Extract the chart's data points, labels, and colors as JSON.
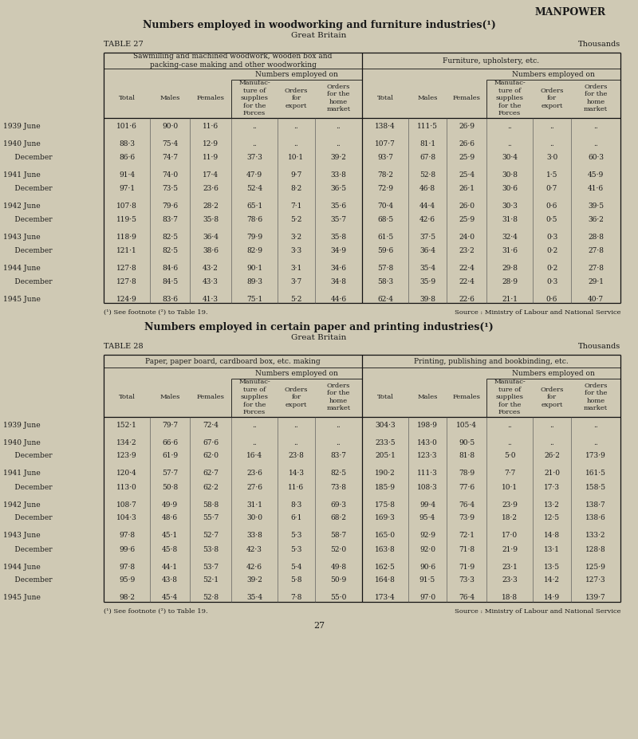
{
  "bg_color": "#cfc9b4",
  "text_color": "#1a1a1a",
  "page_title": "MANPOWER",
  "table27_title": "Numbers employed in woodworking and furniture industries(¹)",
  "table27_subtitle": "Great Britain",
  "table27_label": "TABLE 27",
  "table27_unit": "Thousands",
  "table27_col1_header": "Sawmilling and machined woodwork, wooden box and\npacking-case making and other woodworking",
  "table27_col2_header": "Furniture, upholstery, etc.",
  "table27_footnote": "(¹) See footnote (²) to Table 19.",
  "table27_source": "Source : Ministry of Labour and National Service",
  "table27_rows": [
    [
      "1939 June           ",
      "101·6",
      "90·0",
      "11·6",
      "..",
      "..",
      "..",
      "138·4",
      "111·5",
      "26·9",
      "..",
      "..",
      ".."
    ],
    [
      "1940 June           ",
      "88·3",
      "75·4",
      "12·9",
      "..",
      "..",
      "..",
      "107·7",
      "81·1",
      "26·6",
      "..",
      "..",
      ".."
    ],
    [
      "     December     ",
      "86·6",
      "74·7",
      "11·9",
      "37·3",
      "10·1",
      "39·2",
      "93·7",
      "67·8",
      "25·9",
      "30·4",
      "3·0",
      "60·3"
    ],
    [
      "1941 June          ",
      "91·4",
      "74·0",
      "17·4",
      "47·9",
      "9·7",
      "33·8",
      "78·2",
      "52·8",
      "25·4",
      "30·8",
      "1·5",
      "45·9"
    ],
    [
      "     December     ",
      "97·1",
      "73·5",
      "23·6",
      "52·4",
      "8·2",
      "36·5",
      "72·9",
      "46·8",
      "26·1",
      "30·6",
      "0·7",
      "41·6"
    ],
    [
      "1942 June          ",
      "107·8",
      "79·6",
      "28·2",
      "65·1",
      "7·1",
      "35·6",
      "70·4",
      "44·4",
      "26·0",
      "30·3",
      "0·6",
      "39·5"
    ],
    [
      "     December     ",
      "119·5",
      "83·7",
      "35·8",
      "78·6",
      "5·2",
      "35·7",
      "68·5",
      "42·6",
      "25·9",
      "31·8",
      "0·5",
      "36·2"
    ],
    [
      "1943 June           ",
      "118·9",
      "82·5",
      "36·4",
      "79·9",
      "3·2",
      "35·8",
      "61·5",
      "37·5",
      "24·0",
      "32·4",
      "0·3",
      "28·8"
    ],
    [
      "     December     ",
      "121·1",
      "82·5",
      "38·6",
      "82·9",
      "3·3",
      "34·9",
      "59·6",
      "36·4",
      "23·2",
      "31·6",
      "0·2",
      "27·8"
    ],
    [
      "1944 June           ",
      "127·8",
      "84·6",
      "43·2",
      "90·1",
      "3·1",
      "34·6",
      "57·8",
      "35·4",
      "22·4",
      "29·8",
      "0·2",
      "27·8"
    ],
    [
      "     December     ",
      "127·8",
      "84·5",
      "43·3",
      "89·3",
      "3·7",
      "34·8",
      "58·3",
      "35·9",
      "22·4",
      "28·9",
      "0·3",
      "29·1"
    ],
    [
      "1945 June           ",
      "124·9",
      "83·6",
      "41·3",
      "75·1",
      "5·2",
      "44·6",
      "62·4",
      "39·8",
      "22·6",
      "21·1",
      "0·6",
      "40·7"
    ]
  ],
  "table28_title": "Numbers employed in certain paper and printing industries(¹)",
  "table28_subtitle": "Great Britain",
  "table28_label": "TABLE 28",
  "table28_unit": "Thousands",
  "table28_col1_header": "Paper, paper board, cardboard box, etc. making",
  "table28_col2_header": "Printing, publishing and bookbinding, etc.",
  "table28_footnote": "(¹) See footnote (²) to Table 19.",
  "table28_source": "Source : Ministry of Labour and National Service",
  "table28_rows": [
    [
      "1939 June           ",
      "152·1",
      "79·7",
      "72·4",
      "..",
      "..",
      "..",
      "304·3",
      "198·9",
      "105·4",
      "..",
      "..",
      ".."
    ],
    [
      "1940 June           ",
      "134·2",
      "66·6",
      "67·6",
      "..",
      "..",
      "..",
      "233·5",
      "143·0",
      "90·5",
      "..",
      "..",
      ".."
    ],
    [
      "     December     ",
      "123·9",
      "61·9",
      "62·0",
      "16·4",
      "23·8",
      "83·7",
      "205·1",
      "123·3",
      "81·8",
      "5·0",
      "26·2",
      "173·9"
    ],
    [
      "1941 June          ",
      "120·4",
      "57·7",
      "62·7",
      "23·6",
      "14·3",
      "82·5",
      "190·2",
      "111·3",
      "78·9",
      "7·7",
      "21·0",
      "161·5"
    ],
    [
      "     December     ",
      "113·0",
      "50·8",
      "62·2",
      "27·6",
      "11·6",
      "73·8",
      "185·9",
      "108·3",
      "77·6",
      "10·1",
      "17·3",
      "158·5"
    ],
    [
      "1942 June          ",
      "108·7",
      "49·9",
      "58·8",
      "31·1",
      "8·3",
      "69·3",
      "175·8",
      "99·4",
      "76·4",
      "23·9",
      "13·2",
      "138·7"
    ],
    [
      "     December     ",
      "104·3",
      "48·6",
      "55·7",
      "30·0",
      "6·1",
      "68·2",
      "169·3",
      "95·4",
      "73·9",
      "18·2",
      "12·5",
      "138·6"
    ],
    [
      "1943 June           ",
      "97·8",
      "45·1",
      "52·7",
      "33·8",
      "5·3",
      "58·7",
      "165·0",
      "92·9",
      "72·1",
      "17·0",
      "14·8",
      "133·2"
    ],
    [
      "     December     ",
      "99·6",
      "45·8",
      "53·8",
      "42·3",
      "5·3",
      "52·0",
      "163·8",
      "92·0",
      "71·8",
      "21·9",
      "13·1",
      "128·8"
    ],
    [
      "1944 June           ",
      "97·8",
      "44·1",
      "53·7",
      "42·6",
      "5·4",
      "49·8",
      "162·5",
      "90·6",
      "71·9",
      "23·1",
      "13·5",
      "125·9"
    ],
    [
      "     December     ",
      "95·9",
      "43·8",
      "52·1",
      "39·2",
      "5·8",
      "50·9",
      "164·8",
      "91·5",
      "73·3",
      "23·3",
      "14·2",
      "127·3"
    ],
    [
      "1945 June           ",
      "98·2",
      "45·4",
      "52·8",
      "35·4",
      "7·8",
      "55·0",
      "173·4",
      "97·0",
      "76·4",
      "18·8",
      "14·9",
      "139·7"
    ]
  ],
  "page_number": "27"
}
